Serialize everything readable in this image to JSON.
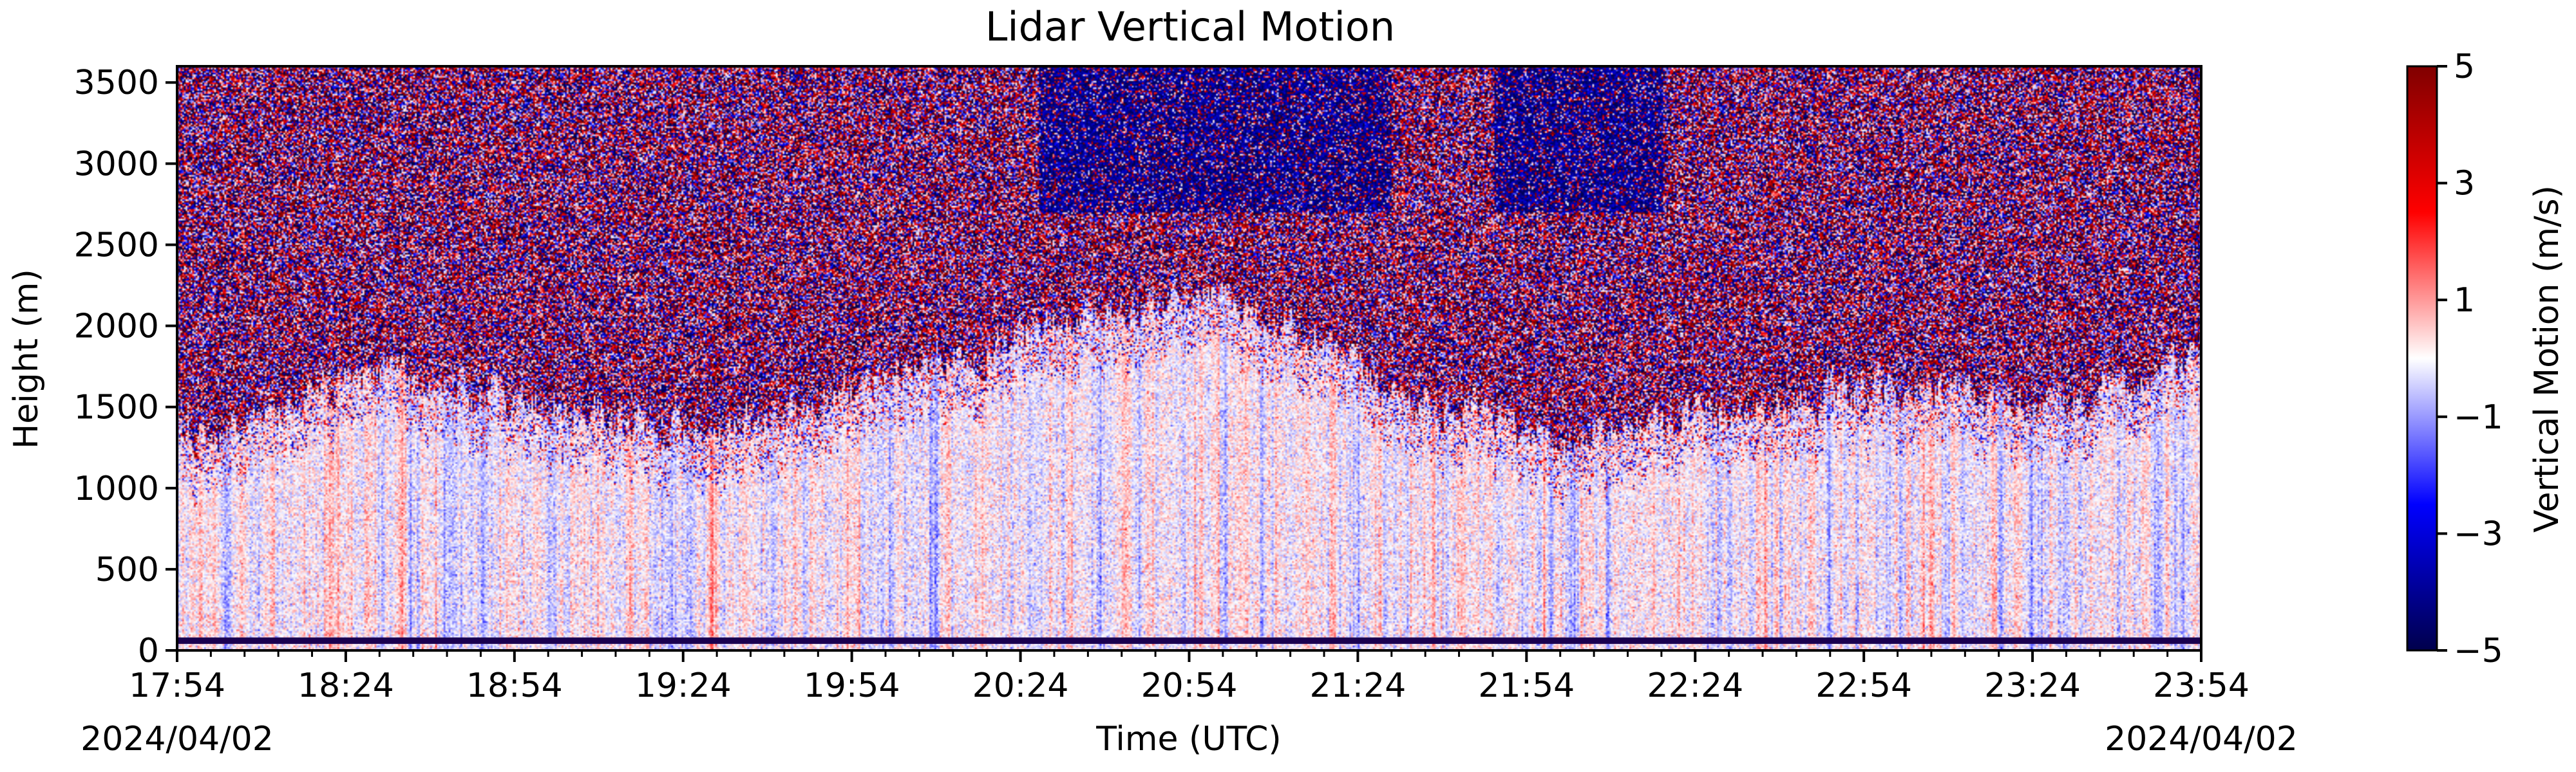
{
  "chart_data": {
    "type": "heatmap",
    "title": "Lidar Vertical Motion",
    "xlabel": "Time (UTC)",
    "ylabel": "Height (m)",
    "x_tick_labels": [
      "17:54",
      "18:24",
      "18:54",
      "19:24",
      "19:54",
      "20:24",
      "20:54",
      "21:24",
      "21:54",
      "22:24",
      "22:54",
      "23:24",
      "23:54"
    ],
    "x_minor_ticks_per_interval": 5,
    "date_left": "2024/04/02",
    "date_right": "2024/04/02",
    "ylim": [
      0,
      3600
    ],
    "y_ticks": [
      0,
      500,
      1000,
      1500,
      2000,
      2500,
      3000,
      3500
    ],
    "colorbar": {
      "label": "Vertical Motion (m/s)",
      "range": [
        -5,
        5
      ],
      "ticks": [
        5,
        3,
        1,
        -1,
        -3,
        -5
      ],
      "tick_labels": [
        "5",
        "3",
        "1",
        "−1",
        "−3",
        "−5"
      ],
      "colormap": "seismic",
      "colors": [
        "#00004c",
        "#0000ff",
        "#ffffff",
        "#ff0000",
        "#800000"
      ]
    },
    "field_description": {
      "noise_top_height_by_hour": [
        [
          17.9,
          1300
        ],
        [
          18.5,
          1700
        ],
        [
          19.0,
          1500
        ],
        [
          19.5,
          1300
        ],
        [
          20.0,
          1700
        ],
        [
          20.5,
          2000
        ],
        [
          21.0,
          2200
        ],
        [
          21.5,
          1600
        ],
        [
          22.0,
          1300
        ],
        [
          22.5,
          1500
        ],
        [
          23.0,
          1600
        ],
        [
          23.5,
          1500
        ],
        [
          23.9,
          1800
        ]
      ],
      "baseline_height": 60
    }
  }
}
